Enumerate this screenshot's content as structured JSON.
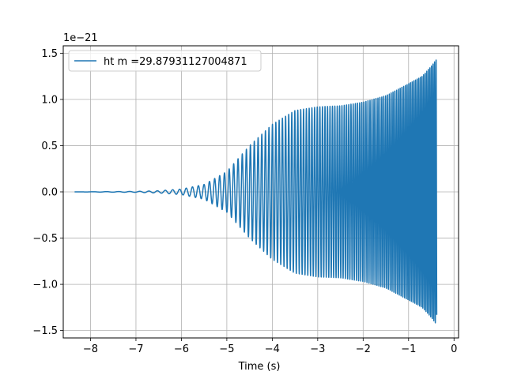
{
  "chart_data": {
    "type": "line",
    "title": "",
    "xlabel": "Time (s)",
    "ylabel": "",
    "y_offset_text": "1e−21",
    "xlim": [
      -8.6,
      0.1
    ],
    "ylim": [
      -1.58,
      1.58
    ],
    "grid": true,
    "legend_position": "top-left",
    "x_ticks": [
      -8,
      -7,
      -6,
      -5,
      -4,
      -3,
      -2,
      -1,
      0
    ],
    "x_tick_labels": [
      "−8",
      "−7",
      "−6",
      "−5",
      "−4",
      "−3",
      "−2",
      "−1",
      "0"
    ],
    "y_ticks": [
      -1.5,
      -1.0,
      -0.5,
      0.0,
      0.5,
      1.0,
      1.5
    ],
    "y_tick_labels": [
      "−1.5",
      "−1.0",
      "−0.5",
      "0.0",
      "0.5",
      "1.0",
      "1.5"
    ],
    "series": [
      {
        "name": "ht m =29.87931127004871",
        "color": "#1f77b4",
        "x_start": -8.35,
        "x_end": -0.38,
        "cycles_per_second_start": 3,
        "cycles_per_second_end": 30,
        "envelope": {
          "x": [
            -8.35,
            -7.0,
            -6.5,
            -6.0,
            -5.5,
            -5.0,
            -4.5,
            -4.0,
            -3.5,
            -3.0,
            -2.5,
            -2.0,
            -1.5,
            -1.0,
            -0.7,
            -0.5,
            -0.38
          ],
          "amplitude": [
            0.0,
            0.005,
            0.012,
            0.03,
            0.08,
            0.22,
            0.5,
            0.73,
            0.88,
            0.92,
            0.93,
            0.97,
            1.04,
            1.17,
            1.25,
            1.36,
            1.44
          ]
        }
      }
    ]
  }
}
